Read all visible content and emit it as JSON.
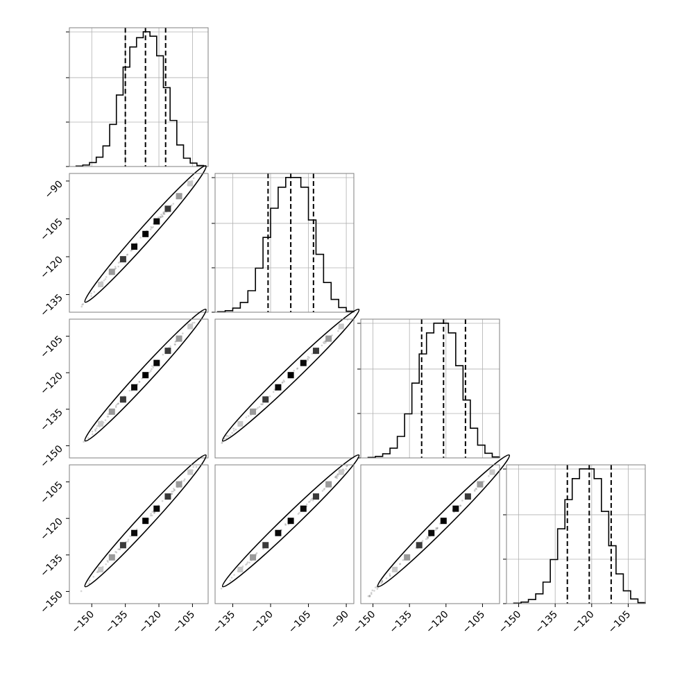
{
  "chart_data": {
    "type": "corner",
    "title": "",
    "parameters": [
      "",
      "",
      "",
      ""
    ],
    "grid": true,
    "quantiles": [
      0.16,
      0.5,
      0.84
    ],
    "diagonal_ranges": [
      [
        -160,
        -98
      ],
      [
        -142,
        -87
      ],
      [
        -155,
        -98
      ],
      [
        -155,
        -98
      ]
    ],
    "marginals": [
      {
        "param": 0,
        "median": -126,
        "q16": -135,
        "q84": -117,
        "bins": [
          -157,
          -154,
          -151,
          -148,
          -145,
          -142,
          -139,
          -136,
          -133,
          -130,
          -127,
          -124,
          -121,
          -118,
          -115,
          -112,
          -109,
          -106,
          -103,
          -100
        ],
        "counts": [
          0.1,
          0.3,
          0.8,
          1.9,
          4.2,
          8.6,
          14.6,
          20.3,
          24.4,
          26.3,
          27.5,
          26.6,
          22.6,
          16.1,
          9.4,
          4.4,
          1.7,
          0.7,
          0.2,
          0.1
        ]
      },
      {
        "param": 1,
        "median": -112,
        "q16": -121,
        "q84": -103,
        "bins": [
          -141,
          -138,
          -135,
          -132,
          -129,
          -126,
          -123,
          -120,
          -117,
          -114,
          -111,
          -108,
          -105,
          -102,
          -99,
          -96,
          -93,
          -90,
          -87
        ],
        "counts": [
          0.1,
          0.3,
          0.8,
          1.9,
          4.2,
          8.6,
          14.6,
          20.3,
          24.4,
          26.3,
          26.3,
          24.4,
          18.0,
          11.3,
          5.8,
          2.5,
          0.9,
          0.2
        ]
      },
      {
        "param": 2,
        "median": -121,
        "q16": -130,
        "q84": -112,
        "bins": [
          -152,
          -149,
          -146,
          -143,
          -140,
          -137,
          -134,
          -131,
          -128,
          -125,
          -122,
          -119,
          -116,
          -113,
          -110,
          -107,
          -104,
          -101,
          -98
        ],
        "counts": [
          0.1,
          0.3,
          0.8,
          1.9,
          4.2,
          8.6,
          14.6,
          20.3,
          24.4,
          26.3,
          26.3,
          24.4,
          18.0,
          11.3,
          5.8,
          2.5,
          0.9,
          0.2
        ]
      },
      {
        "param": 3,
        "median": -121,
        "q16": -130,
        "q84": -112,
        "bins": [
          -152,
          -149,
          -146,
          -143,
          -140,
          -137,
          -134,
          -131,
          -128,
          -125,
          -122,
          -119,
          -116,
          -113,
          -110,
          -107,
          -104,
          -101,
          -98
        ],
        "counts": [
          0.1,
          0.3,
          0.8,
          1.9,
          4.2,
          8.6,
          14.6,
          20.3,
          24.4,
          26.3,
          26.3,
          24.4,
          18.0,
          11.3,
          5.8,
          2.5,
          0.9,
          0.2
        ]
      }
    ],
    "joints": [
      {
        "x": 0,
        "y": 1,
        "xlim": [
          -160,
          -98
        ],
        "ylim": [
          -142,
          -87
        ],
        "x_from": -155,
        "x_to": -100,
        "offset": 15,
        "center": -126
      },
      {
        "x": 0,
        "y": 2,
        "xlim": [
          -160,
          -98
        ],
        "ylim": [
          -155,
          -98
        ],
        "x_from": -155,
        "x_to": -100,
        "offset": 5,
        "center": -126
      },
      {
        "x": 1,
        "y": 2,
        "xlim": [
          -142,
          -87
        ],
        "ylim": [
          -155,
          -98
        ],
        "x_from": -140,
        "x_to": -88,
        "offset": -9,
        "center": -112
      },
      {
        "x": 0,
        "y": 3,
        "xlim": [
          -160,
          -98
        ],
        "ylim": [
          -155,
          -98
        ],
        "x_from": -155,
        "x_to": -100,
        "offset": 5,
        "center": -126
      },
      {
        "x": 1,
        "y": 3,
        "xlim": [
          -142,
          -87
        ],
        "ylim": [
          -155,
          -98
        ],
        "x_from": -140,
        "x_to": -88,
        "offset": -9,
        "center": -112
      },
      {
        "x": 2,
        "y": 3,
        "xlim": [
          -155,
          -98
        ],
        "ylim": [
          -155,
          -98
        ],
        "x_from": -152,
        "x_to": -100,
        "offset": 0,
        "center": -121
      }
    ],
    "xticks": [
      [
        "−150",
        "−135",
        "−120",
        "−105"
      ],
      [
        "−135",
        "−120",
        "−105",
        "−90"
      ],
      [
        "−150",
        "−135",
        "−120",
        "−105"
      ],
      [
        "−150",
        "−135",
        "−120",
        "−105"
      ]
    ],
    "xtick_values": [
      [
        -150,
        -135,
        -120,
        -105
      ],
      [
        -135,
        -120,
        -105,
        -90
      ],
      [
        -150,
        -135,
        -120,
        -105
      ],
      [
        -150,
        -135,
        -120,
        -105
      ]
    ],
    "yticks": [
      [],
      [
        "−90",
        "−105",
        "−120",
        "−135"
      ],
      [
        "−105",
        "−120",
        "−135",
        "−150"
      ],
      [
        "−105",
        "−120",
        "−135",
        "−150"
      ]
    ],
    "ytick_values": [
      [],
      [
        -90,
        -105,
        -120,
        -135
      ],
      [
        -105,
        -120,
        -135,
        -150
      ],
      [
        -105,
        -120,
        -135,
        -150
      ]
    ]
  }
}
